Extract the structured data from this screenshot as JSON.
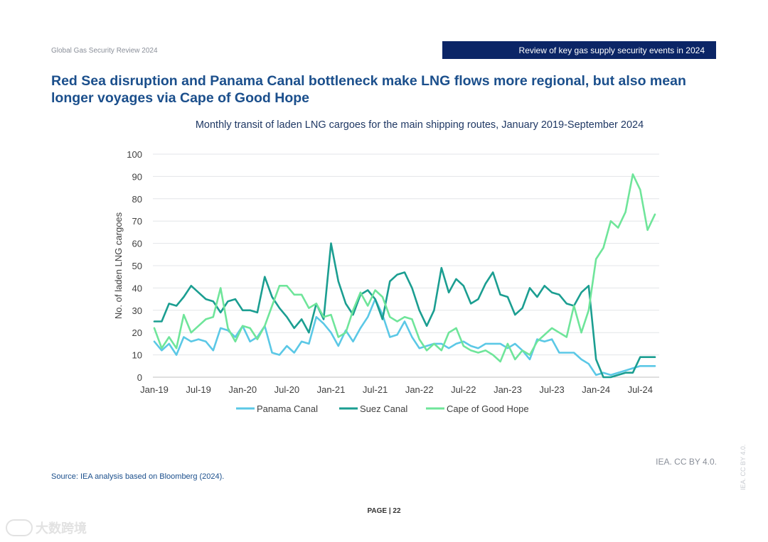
{
  "header": {
    "doc_title": "Global Gas Security Review 2024",
    "section": "Review of key gas supply security events in 2024"
  },
  "headline": "Red Sea disruption and Panama Canal bottleneck make LNG flows more regional, but also mean longer voyages via Cape of Good Hope",
  "chart_data": {
    "type": "line",
    "title": "Monthly transit of laden LNG cargoes for the main shipping routes, January 2019-September 2024",
    "xlabel": "",
    "ylabel": "No. of laden LNG cargoes",
    "ylim": [
      0,
      100
    ],
    "yticks": [
      0,
      10,
      20,
      30,
      40,
      50,
      60,
      70,
      80,
      90,
      100
    ],
    "grid": true,
    "legend": "bottom",
    "x_tick_labels": [
      "Jan-19",
      "Jul-19",
      "Jan-20",
      "Jul-20",
      "Jan-21",
      "Jul-21",
      "Jan-22",
      "Jul-22",
      "Jan-23",
      "Jul-23",
      "Jan-24",
      "Jul-24"
    ],
    "x_tick_interval_months": 6,
    "series": [
      {
        "name": "Panama Canal",
        "color": "#5bc8e6",
        "values": [
          16,
          12,
          15,
          10,
          18,
          16,
          17,
          16,
          12,
          22,
          21,
          18,
          23,
          16,
          18,
          23,
          11,
          10,
          14,
          11,
          16,
          15,
          27,
          24,
          20,
          14,
          21,
          16,
          22,
          27,
          35,
          28,
          18,
          19,
          25,
          18,
          13,
          14,
          15,
          15,
          13,
          15,
          16,
          14,
          13,
          15,
          15,
          15,
          13,
          15,
          12,
          8,
          17,
          16,
          17,
          11,
          11,
          11,
          8,
          6,
          1,
          2,
          1,
          2,
          3,
          4,
          5,
          5,
          5
        ]
      },
      {
        "name": "Suez Canal",
        "color": "#1b9e91",
        "values": [
          25,
          25,
          33,
          32,
          36,
          41,
          38,
          35,
          34,
          29,
          34,
          35,
          30,
          30,
          29,
          45,
          36,
          31,
          27,
          22,
          26,
          20,
          33,
          26,
          60,
          43,
          33,
          28,
          37,
          39,
          35,
          26,
          43,
          46,
          47,
          40,
          30,
          23,
          30,
          49,
          38,
          44,
          41,
          33,
          35,
          42,
          47,
          37,
          36,
          28,
          31,
          40,
          36,
          41,
          38,
          37,
          33,
          32,
          38,
          41,
          8,
          0,
          0,
          1,
          2,
          2,
          9,
          9,
          9
        ]
      },
      {
        "name": "Cape of Good Hope",
        "color": "#6fe59a",
        "values": [
          22,
          13,
          18,
          13,
          28,
          20,
          23,
          26,
          27,
          40,
          22,
          16,
          23,
          22,
          17,
          23,
          32,
          41,
          41,
          37,
          37,
          31,
          33,
          27,
          28,
          18,
          20,
          30,
          38,
          32,
          39,
          36,
          27,
          25,
          27,
          26,
          17,
          12,
          15,
          12,
          20,
          22,
          14,
          12,
          11,
          12,
          10,
          7,
          15,
          8,
          12,
          10,
          16,
          19,
          22,
          20,
          18,
          32,
          20,
          30,
          53,
          58,
          70,
          67,
          74,
          91,
          84,
          66,
          73
        ]
      }
    ]
  },
  "credit": "IEA. CC BY 4.0.",
  "source": "Source: IEA analysis based on Bloomberg (2024).",
  "page_number": "PAGE | 22",
  "vertical_credit": "IEA. CC BY 4.0.",
  "watermark": "大数跨境"
}
